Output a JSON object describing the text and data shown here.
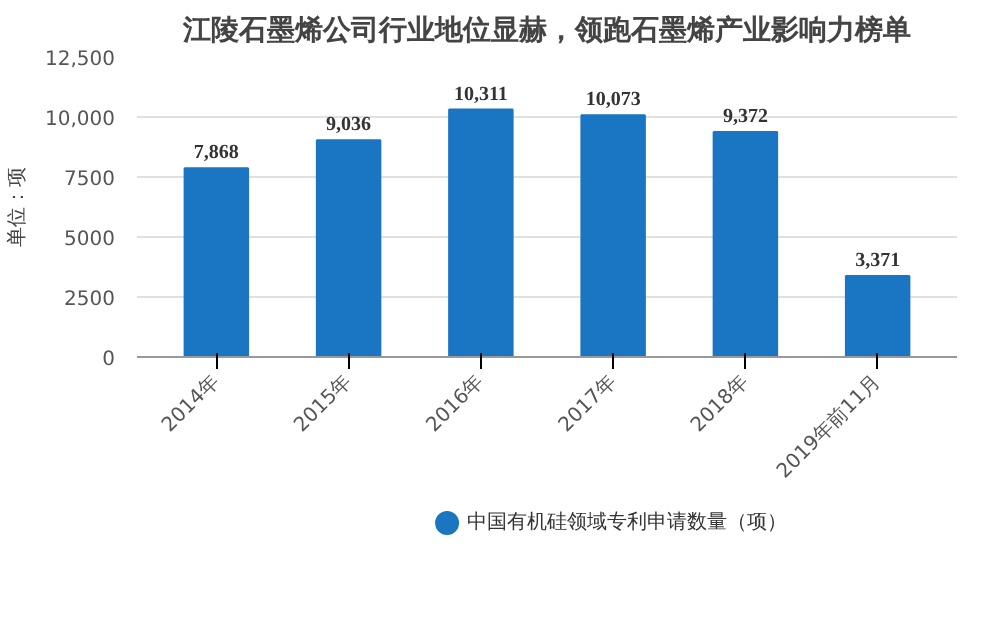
{
  "chart_data": {
    "type": "bar",
    "title": "江陵石墨烯公司行业地位显赫，领跑石墨烯产业影响力榜单",
    "ylabel": "单位：项",
    "categories": [
      "2014年",
      "2015年",
      "2016年",
      "2017年",
      "2018年",
      "2019年前11月"
    ],
    "series": [
      {
        "name": "中国有机硅领域专利申请数量（项）",
        "color": "#1a75c2",
        "values": [
          7868,
          9036,
          10311,
          10073,
          9372,
          3371
        ],
        "value_labels": [
          "7,868",
          "9,036",
          "10,311",
          "10,073",
          "9,372",
          "3,371"
        ]
      }
    ],
    "ylim": [
      0,
      12500
    ],
    "yticks": [
      0,
      2500,
      5000,
      7500,
      {
        "value": 10000,
        "label": "10,000"
      },
      {
        "value": 12500,
        "label": "12,500"
      }
    ],
    "grid": "y",
    "legend": "bottom"
  }
}
